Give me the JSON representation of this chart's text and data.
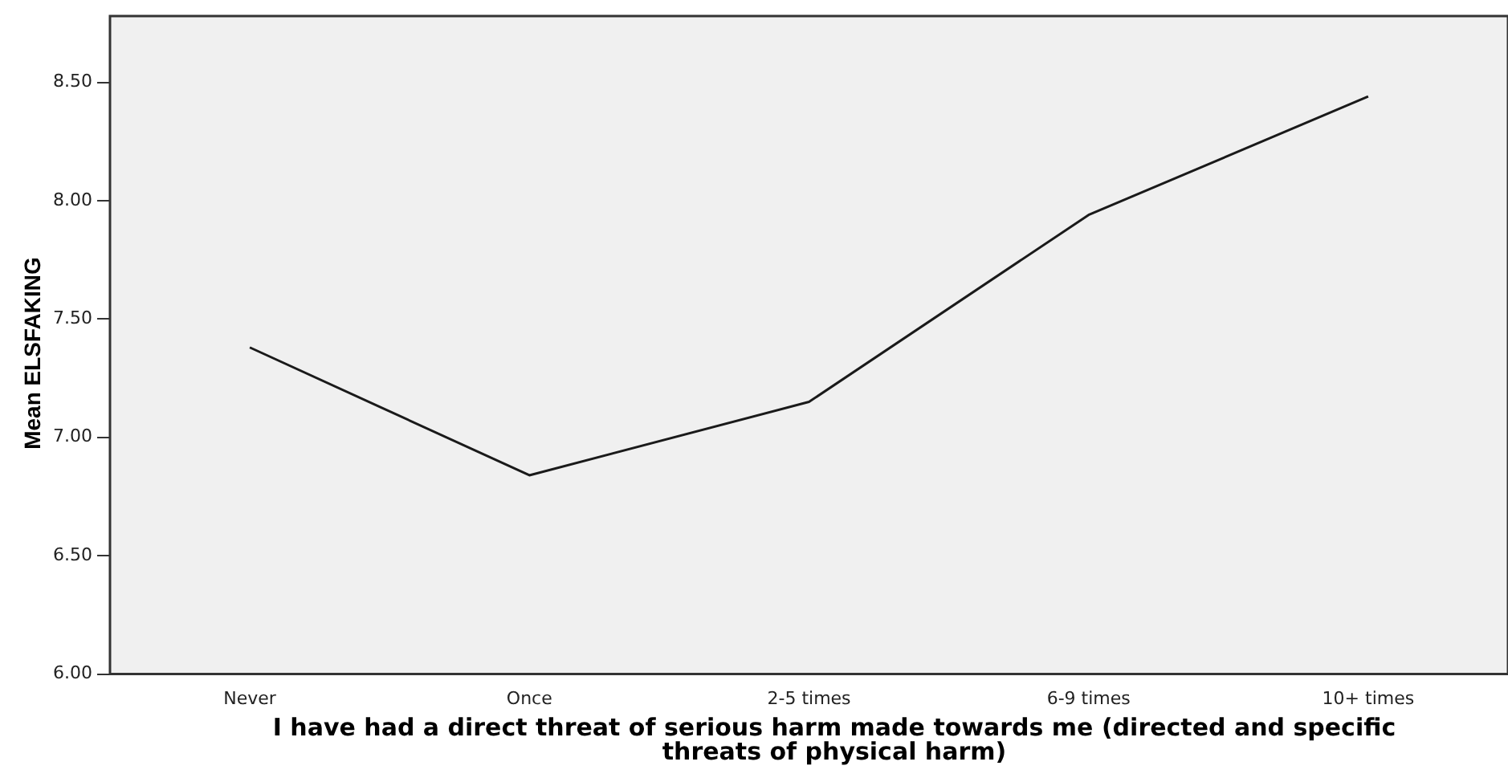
{
  "chart_data": {
    "type": "line",
    "xlabel": "I have had a direct threat of serious harm made towards me (directed and specific threats of physical harm)",
    "ylabel": "Mean ELSFAKING",
    "categories": [
      "Never",
      "Once",
      "2-5 times",
      "6-9 times",
      "10+ times"
    ],
    "values": [
      7.38,
      6.84,
      7.15,
      7.94,
      8.44
    ],
    "color": "#1a1a1a",
    "ylim": [
      6,
      8.78
    ],
    "yticks": [
      {
        "value": 6,
        "label": "6.00"
      },
      {
        "value": 6.5,
        "label": "6.50"
      },
      {
        "value": 7,
        "label": "7.00"
      },
      {
        "value": 7.5,
        "label": "7.50"
      },
      {
        "value": 8,
        "label": "8.00"
      },
      {
        "value": 8.5,
        "label": "8.50"
      }
    ],
    "grid": false,
    "legend": false,
    "marker": "none",
    "line_style": "solid"
  }
}
